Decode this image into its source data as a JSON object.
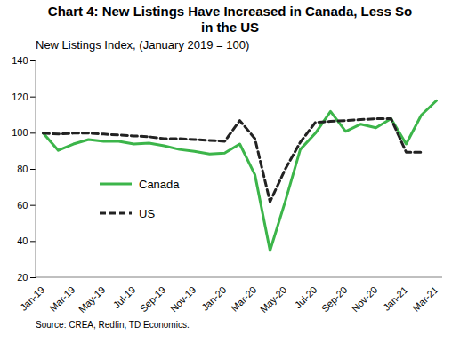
{
  "chart_data": {
    "type": "line",
    "title": "Chart 4: New Listings Have Increased in Canada, Less So in the US",
    "subtitle": "New Listings Index, (January 2019 = 100)",
    "source": "Source: CREA, Redfin, TD Economics.",
    "categories": [
      "Jan-19",
      null,
      "Mar-19",
      null,
      "May-19",
      null,
      "Jul-19",
      null,
      "Sep-19",
      null,
      "Nov-19",
      null,
      "Jan-20",
      null,
      "Mar-20",
      null,
      "May-20",
      null,
      "Jul-20",
      null,
      "Sep-20",
      null,
      "Nov-20",
      null,
      "Jan-21",
      null,
      "Mar-21"
    ],
    "series": [
      {
        "name": "Canada",
        "color": "#3cb54a",
        "line_style": "solid",
        "values": [
          100,
          90.5,
          94,
          96.5,
          95.5,
          95.5,
          94,
          94.5,
          93,
          91,
          90,
          88.5,
          89,
          94,
          77,
          35,
          62,
          91,
          100,
          112,
          101,
          105,
          103,
          108,
          94,
          110,
          118
        ]
      },
      {
        "name": "US",
        "color": "#222222",
        "line_style": "dashed",
        "values": [
          100,
          99.5,
          100,
          100,
          99.5,
          99,
          98.5,
          98,
          97,
          97,
          96.5,
          96,
          95.5,
          107,
          97,
          62,
          80,
          95,
          106,
          106.5,
          107,
          107.5,
          108,
          108,
          89.5,
          89.5,
          null
        ]
      }
    ],
    "ylim": [
      20,
      140
    ],
    "yticks": [
      20,
      40,
      60,
      80,
      100,
      120,
      140
    ],
    "grid": false,
    "legend": "left"
  }
}
